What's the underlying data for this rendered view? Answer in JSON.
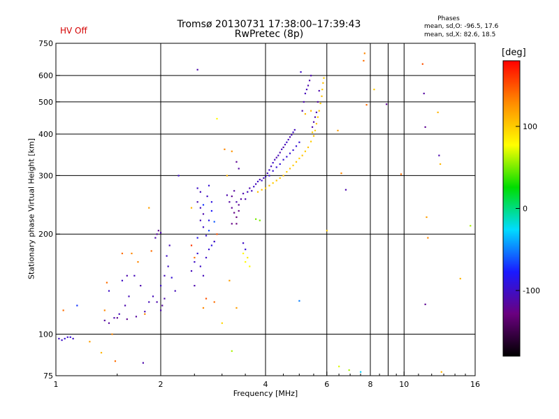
{
  "header": {
    "hv_status": "HV Off",
    "title_line1": "Tromsø 20130731 17:38:00–17:39:43",
    "title_line2": "RwPretec (8p)",
    "phases_title": "Phases",
    "phases_o": "mean, sd,O: -96.5, 17.6",
    "phases_x": "mean, sd,X:  82.6, 18.5"
  },
  "colorbar": {
    "unit_label": "[deg]",
    "tick_values": [
      100,
      0,
      -100
    ],
    "range": [
      -180,
      180
    ],
    "colors": [
      "#000000",
      "#6a007f",
      "#1a1aff",
      "#00dcff",
      "#00dd00",
      "#ffff00",
      "#ff8c00",
      "#ff0000"
    ]
  },
  "chart_data": {
    "type": "scatter",
    "title": "Tromsø 20130731 17:38:00–17:39:43",
    "subtitle": "RwPretec (8p)",
    "xlabel": "Frequency [MHz]",
    "ylabel": "Stationary phase Virtual Height [km]",
    "x_scale": "log",
    "y_scale": "log",
    "xlim": [
      1,
      16
    ],
    "ylim": [
      75,
      750
    ],
    "x_ticks": [
      1,
      2,
      4,
      6,
      8,
      10,
      16
    ],
    "y_ticks": [
      75,
      100,
      200,
      300,
      400,
      500,
      600,
      750
    ],
    "grid": true,
    "points": [
      [
        1.02,
        97,
        -100
      ],
      [
        1.04,
        96,
        -100
      ],
      [
        1.06,
        97,
        -95
      ],
      [
        1.08,
        98,
        -100
      ],
      [
        1.1,
        98,
        -95
      ],
      [
        1.12,
        97,
        -100
      ],
      [
        1.05,
        118,
        140
      ],
      [
        1.15,
        122,
        -70
      ],
      [
        1.38,
        110,
        -115
      ],
      [
        1.42,
        108,
        -115
      ],
      [
        1.47,
        112,
        -110
      ],
      [
        1.52,
        115,
        -105
      ],
      [
        1.58,
        122,
        -110
      ],
      [
        1.62,
        130,
        -105
      ],
      [
        1.5,
        112,
        -120
      ],
      [
        1.6,
        111,
        -120
      ],
      [
        1.7,
        113,
        -115
      ],
      [
        1.8,
        117,
        -110
      ],
      [
        1.75,
        140,
        -110
      ],
      [
        1.85,
        125,
        -105
      ],
      [
        1.42,
        135,
        -100
      ],
      [
        1.55,
        145,
        -100
      ],
      [
        1.68,
        150,
        -105
      ],
      [
        1.72,
        165,
        130
      ],
      [
        1.88,
        178,
        140
      ],
      [
        1.6,
        150,
        -110
      ],
      [
        1.93,
        195,
        -110
      ],
      [
        1.95,
        200,
        -115
      ],
      [
        1.97,
        205,
        -120
      ],
      [
        2.0,
        202,
        -110
      ],
      [
        1.85,
        240,
        120
      ],
      [
        1.65,
        175,
        130
      ],
      [
        2.0,
        140,
        -100
      ],
      [
        2.05,
        150,
        -105
      ],
      [
        2.1,
        160,
        -100
      ],
      [
        2.15,
        148,
        -95
      ],
      [
        2.2,
        135,
        -105
      ],
      [
        2.05,
        128,
        -110
      ],
      [
        1.95,
        125,
        -110
      ],
      [
        2.02,
        122,
        -115
      ],
      [
        2.0,
        118,
        -110
      ],
      [
        1.9,
        130,
        -105
      ],
      [
        2.08,
        172,
        -100
      ],
      [
        2.12,
        185,
        -105
      ],
      [
        1.38,
        118,
        130
      ],
      [
        1.45,
        100,
        130
      ],
      [
        1.4,
        143,
        140
      ],
      [
        1.55,
        175,
        140
      ],
      [
        1.8,
        115,
        130
      ],
      [
        1.78,
        82,
        -110
      ],
      [
        2.55,
        275,
        -100
      ],
      [
        2.6,
        268,
        -105
      ],
      [
        2.55,
        250,
        -110
      ],
      [
        2.6,
        240,
        -105
      ],
      [
        2.65,
        230,
        -110
      ],
      [
        2.6,
        220,
        -105
      ],
      [
        2.65,
        210,
        -100
      ],
      [
        2.7,
        198,
        -95
      ],
      [
        2.75,
        220,
        -85
      ],
      [
        2.8,
        250,
        -90
      ],
      [
        2.72,
        260,
        -100
      ],
      [
        2.75,
        280,
        -95
      ],
      [
        2.8,
        235,
        -80
      ],
      [
        2.65,
        245,
        -70
      ],
      [
        2.75,
        205,
        -65
      ],
      [
        2.85,
        218,
        -60
      ],
      [
        2.9,
        200,
        150
      ],
      [
        2.85,
        190,
        150
      ],
      [
        2.45,
        155,
        -105
      ],
      [
        2.5,
        165,
        -100
      ],
      [
        2.55,
        175,
        -95
      ],
      [
        2.6,
        160,
        -100
      ],
      [
        2.65,
        150,
        -105
      ],
      [
        2.7,
        170,
        -100
      ],
      [
        2.75,
        180,
        -95
      ],
      [
        2.8,
        185,
        -90
      ],
      [
        2.85,
        190,
        -90
      ],
      [
        2.55,
        195,
        -85
      ],
      [
        2.45,
        185,
        160
      ],
      [
        2.5,
        140,
        -110
      ],
      [
        3.1,
        262,
        -110
      ],
      [
        3.15,
        250,
        -115
      ],
      [
        3.2,
        240,
        -120
      ],
      [
        3.25,
        232,
        -125
      ],
      [
        3.3,
        225,
        -130
      ],
      [
        3.35,
        235,
        -125
      ],
      [
        3.2,
        260,
        -120
      ],
      [
        3.25,
        270,
        -115
      ],
      [
        3.3,
        250,
        -110
      ],
      [
        3.35,
        245,
        -120
      ],
      [
        3.3,
        215,
        -130
      ],
      [
        3.2,
        215,
        -125
      ],
      [
        3.4,
        255,
        -115
      ],
      [
        3.45,
        265,
        -110
      ],
      [
        3.5,
        255,
        -110
      ],
      [
        3.55,
        268,
        -105
      ],
      [
        3.6,
        275,
        -110
      ],
      [
        3.65,
        270,
        -105
      ],
      [
        3.7,
        278,
        -100
      ],
      [
        3.75,
        283,
        -105
      ],
      [
        3.8,
        288,
        -100
      ],
      [
        3.85,
        292,
        -105
      ],
      [
        3.9,
        290,
        -100
      ],
      [
        3.95,
        295,
        -105
      ],
      [
        4.0,
        298,
        -100
      ],
      [
        4.05,
        305,
        -105
      ],
      [
        4.1,
        312,
        -100
      ],
      [
        4.15,
        320,
        -105
      ],
      [
        4.2,
        328,
        -100
      ],
      [
        4.25,
        335,
        -105
      ],
      [
        4.3,
        340,
        -110
      ],
      [
        4.35,
        345,
        -105
      ],
      [
        4.4,
        352,
        -110
      ],
      [
        4.45,
        360,
        -105
      ],
      [
        4.5,
        365,
        -110
      ],
      [
        4.55,
        372,
        -105
      ],
      [
        4.6,
        378,
        -100
      ],
      [
        4.65,
        385,
        -105
      ],
      [
        4.7,
        392,
        -110
      ],
      [
        4.75,
        398,
        -105
      ],
      [
        4.8,
        405,
        -100
      ],
      [
        4.85,
        412,
        -105
      ],
      [
        4.1,
        300,
        -95
      ],
      [
        4.2,
        310,
        -95
      ],
      [
        4.3,
        318,
        -95
      ],
      [
        4.4,
        325,
        -95
      ],
      [
        4.5,
        335,
        -95
      ],
      [
        4.6,
        342,
        -95
      ],
      [
        4.7,
        350,
        -95
      ],
      [
        4.8,
        358,
        -95
      ],
      [
        4.9,
        368,
        -95
      ],
      [
        5.0,
        378,
        -95
      ],
      [
        5.05,
        615,
        -100
      ],
      [
        5.1,
        470,
        -110
      ],
      [
        5.15,
        500,
        -110
      ],
      [
        5.2,
        530,
        -105
      ],
      [
        5.25,
        545,
        -105
      ],
      [
        5.3,
        560,
        -110
      ],
      [
        5.35,
        580,
        -110
      ],
      [
        5.4,
        600,
        -110
      ],
      [
        5.45,
        420,
        -110
      ],
      [
        5.5,
        435,
        -110
      ],
      [
        5.55,
        450,
        -110
      ],
      [
        5.6,
        465,
        -110
      ],
      [
        5.65,
        500,
        -115
      ],
      [
        5.7,
        540,
        -110
      ],
      [
        3.8,
        268,
        105
      ],
      [
        3.9,
        272,
        105
      ],
      [
        4.0,
        275,
        100
      ],
      [
        4.1,
        280,
        105
      ],
      [
        4.2,
        285,
        100
      ],
      [
        4.3,
        290,
        105
      ],
      [
        4.4,
        295,
        100
      ],
      [
        4.5,
        300,
        105
      ],
      [
        4.6,
        308,
        100
      ],
      [
        4.7,
        315,
        105
      ],
      [
        4.8,
        322,
        100
      ],
      [
        4.9,
        330,
        105
      ],
      [
        5.0,
        338,
        100
      ],
      [
        5.1,
        345,
        105
      ],
      [
        5.2,
        355,
        100
      ],
      [
        5.3,
        365,
        105
      ],
      [
        5.4,
        380,
        100
      ],
      [
        5.5,
        395,
        105
      ],
      [
        5.55,
        410,
        100
      ],
      [
        5.6,
        430,
        105
      ],
      [
        5.65,
        450,
        100
      ],
      [
        5.7,
        470,
        105
      ],
      [
        5.75,
        495,
        100
      ],
      [
        5.8,
        520,
        105
      ],
      [
        5.82,
        545,
        100
      ],
      [
        5.85,
        570,
        105
      ],
      [
        5.88,
        590,
        100
      ],
      [
        5.4,
        470,
        110
      ],
      [
        5.45,
        405,
        100
      ],
      [
        5.2,
        460,
        110
      ],
      [
        3.85,
        220,
        50
      ],
      [
        3.75,
        222,
        50
      ],
      [
        3.5,
        165,
        80
      ],
      [
        3.55,
        170,
        85
      ],
      [
        3.6,
        160,
        80
      ],
      [
        3.45,
        175,
        80
      ],
      [
        3.1,
        300,
        110
      ],
      [
        3.2,
        355,
        125
      ],
      [
        3.3,
        330,
        -120
      ],
      [
        3.35,
        315,
        -115
      ],
      [
        3.45,
        188,
        -100
      ],
      [
        3.5,
        180,
        -95
      ],
      [
        2.25,
        300,
        -100
      ],
      [
        2.55,
        625,
        -110
      ],
      [
        2.9,
        445,
        80
      ],
      [
        3.05,
        360,
        130
      ],
      [
        3.0,
        108,
        95
      ],
      [
        3.2,
        89,
        60
      ],
      [
        3.3,
        120,
        120
      ],
      [
        3.15,
        145,
        120
      ],
      [
        2.85,
        125,
        140
      ],
      [
        2.7,
        128,
        150
      ],
      [
        2.65,
        120,
        130
      ],
      [
        2.5,
        170,
        140
      ],
      [
        5.0,
        126,
        -50
      ],
      [
        6.0,
        205,
        100
      ],
      [
        6.5,
        80,
        70
      ],
      [
        6.45,
        410,
        120
      ],
      [
        6.6,
        305,
        130
      ],
      [
        6.95,
        78,
        60
      ],
      [
        7.5,
        77,
        -30
      ],
      [
        7.7,
        700,
        130
      ],
      [
        7.65,
        665,
        140
      ],
      [
        7.8,
        490,
        140
      ],
      [
        8.2,
        545,
        100
      ],
      [
        8.9,
        492,
        -120
      ],
      [
        9.8,
        303,
        140
      ],
      [
        11.3,
        650,
        150
      ],
      [
        11.4,
        530,
        -115
      ],
      [
        11.5,
        420,
        -120
      ],
      [
        11.5,
        123,
        -120
      ],
      [
        11.6,
        225,
        120
      ],
      [
        11.7,
        195,
        130
      ],
      [
        12.5,
        465,
        110
      ],
      [
        12.6,
        345,
        -110
      ],
      [
        12.7,
        325,
        110
      ],
      [
        12.8,
        77,
        110
      ],
      [
        14.5,
        147,
        110
      ],
      [
        15.5,
        212,
        60
      ],
      [
        6.8,
        272,
        -110
      ],
      [
        1.35,
        88,
        110
      ],
      [
        1.48,
        83,
        140
      ],
      [
        2.45,
        240,
        110
      ],
      [
        1.25,
        95,
        120
      ]
    ]
  }
}
